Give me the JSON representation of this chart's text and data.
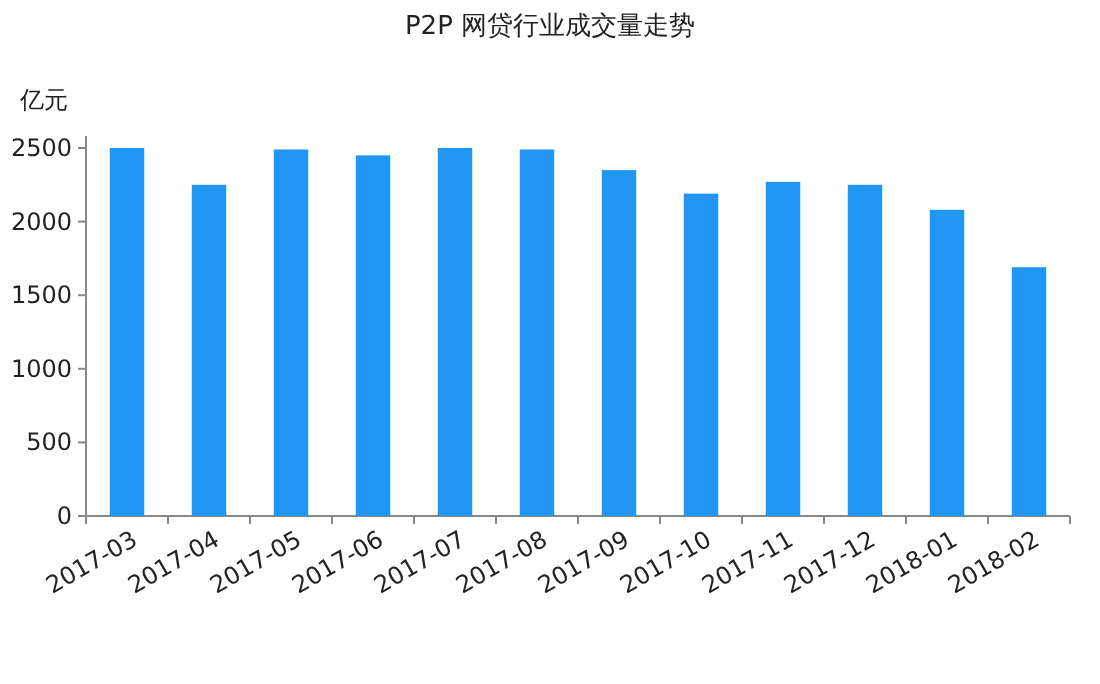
{
  "chart_data": {
    "type": "bar",
    "title": "P2P 网贷行业成交量走势",
    "ylabel": "亿元",
    "categories": [
      "2017-03",
      "2017-04",
      "2017-05",
      "2017-06",
      "2017-07",
      "2017-08",
      "2017-09",
      "2017-10",
      "2017-11",
      "2017-12",
      "2018-01",
      "2018-02"
    ],
    "values": [
      2500,
      2250,
      2490,
      2450,
      2500,
      2490,
      2350,
      2190,
      2270,
      2250,
      2080,
      1690
    ],
    "color": "#2196f3",
    "ylim": [
      0,
      2500
    ],
    "yticks": [
      0,
      500,
      1000,
      1500,
      2000,
      2500
    ],
    "grid": false
  }
}
